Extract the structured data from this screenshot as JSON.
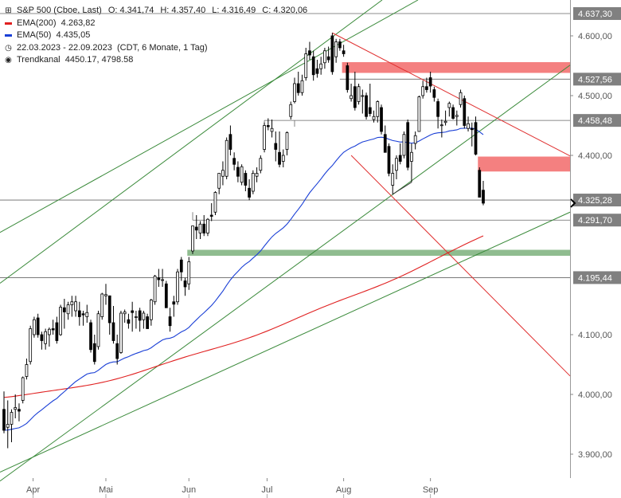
{
  "header": {
    "title": "S&P 500 (Cboe, Last)",
    "ohlc": [
      {
        "key": "O:",
        "value": "4.341,74"
      },
      {
        "key": "H:",
        "value": "4.357,40"
      },
      {
        "key": "L:",
        "value": "4.316,49"
      },
      {
        "key": "C:",
        "value": "4.320,06"
      }
    ],
    "ema200": {
      "label": "EMA(200)",
      "value": "4.263,82",
      "color": "#e02020"
    },
    "ema50": {
      "label": "EMA(50)",
      "value": "4.435,05",
      "color": "#1a3fd6"
    },
    "range": {
      "dates": "22.03.2023 - 22.09.2023",
      "note": "(CDT, 6 Monate, 1 Tag)"
    },
    "channel": {
      "label": "Trendkanal",
      "value": "4450.17, 4798.58"
    }
  },
  "chart_data": {
    "type": "candlestick",
    "ylim": [
      3860,
      4660
    ],
    "y_ticks": [
      {
        "value": 3900,
        "label": "3.900,00"
      },
      {
        "value": 4000,
        "label": "4.000,00"
      },
      {
        "value": 4100,
        "label": "4.100,00"
      },
      {
        "value": 4400,
        "label": "4.400,00"
      },
      {
        "value": 4500,
        "label": "4.500,00"
      },
      {
        "value": 4600,
        "label": "4.600,00"
      }
    ],
    "x_labels": [
      {
        "date": "2023-04-01",
        "label": "Apr"
      },
      {
        "date": "2023-05-01",
        "label": "Mai"
      },
      {
        "date": "2023-06-01",
        "label": "Jun"
      },
      {
        "date": "2023-07-01",
        "label": "Jul"
      },
      {
        "date": "2023-08-01",
        "label": "Aug"
      },
      {
        "date": "2023-09-01",
        "label": "Sep"
      }
    ],
    "price_levels": [
      {
        "value": 4637.3,
        "label": "4.637,30"
      },
      {
        "value": 4527.56,
        "label": "4.527,56"
      },
      {
        "value": 4458.48,
        "label": "4.458,48"
      },
      {
        "value": 4325.28,
        "label": "4.325,28"
      },
      {
        "value": 4291.7,
        "label": "4.291,70"
      },
      {
        "value": 4195.44,
        "label": "4.195,44"
      }
    ],
    "last_price_label": "4.325,28",
    "zones": [
      {
        "y_low": 4538,
        "y_high": 4556,
        "color": "#f48080"
      },
      {
        "y_low": 4373,
        "y_high": 4398,
        "color": "#f48080"
      },
      {
        "y_low": 4232,
        "y_high": 4242,
        "color": "#8fbc8f"
      }
    ],
    "ohlc": [
      {
        "date": "2023-03-22",
        "o": 3975,
        "h": 4005,
        "l": 3935,
        "c": 3940
      },
      {
        "date": "2023-03-23",
        "o": 3945,
        "h": 3990,
        "l": 3910,
        "c": 3950
      },
      {
        "date": "2023-03-24",
        "o": 3950,
        "h": 3975,
        "l": 3920,
        "c": 3970
      },
      {
        "date": "2023-03-27",
        "o": 3975,
        "h": 4000,
        "l": 3960,
        "c": 3978
      },
      {
        "date": "2023-03-28",
        "o": 3975,
        "h": 3985,
        "l": 3955,
        "c": 3972
      },
      {
        "date": "2023-03-29",
        "o": 3990,
        "h": 4030,
        "l": 3985,
        "c": 4028
      },
      {
        "date": "2023-03-30",
        "o": 4030,
        "h": 4060,
        "l": 4025,
        "c": 4050
      },
      {
        "date": "2023-03-31",
        "o": 4055,
        "h": 4115,
        "l": 4050,
        "c": 4110
      },
      {
        "date": "2023-04-03",
        "o": 4100,
        "h": 4130,
        "l": 4095,
        "c": 4125
      },
      {
        "date": "2023-04-04",
        "o": 4128,
        "h": 4135,
        "l": 4095,
        "c": 4100
      },
      {
        "date": "2023-04-05",
        "o": 4100,
        "h": 4105,
        "l": 4075,
        "c": 4090
      },
      {
        "date": "2023-04-06",
        "o": 4085,
        "h": 4110,
        "l": 4075,
        "c": 4105
      },
      {
        "date": "2023-04-10",
        "o": 4100,
        "h": 4112,
        "l": 4080,
        "c": 4109
      },
      {
        "date": "2023-04-11",
        "o": 4110,
        "h": 4125,
        "l": 4100,
        "c": 4108
      },
      {
        "date": "2023-04-12",
        "o": 4120,
        "h": 4130,
        "l": 4085,
        "c": 4090
      },
      {
        "date": "2023-04-13",
        "o": 4100,
        "h": 4150,
        "l": 4098,
        "c": 4146
      },
      {
        "date": "2023-04-14",
        "o": 4145,
        "h": 4160,
        "l": 4110,
        "c": 4138
      },
      {
        "date": "2023-04-17",
        "o": 4135,
        "h": 4155,
        "l": 4125,
        "c": 4150
      },
      {
        "date": "2023-04-18",
        "o": 4150,
        "h": 4165,
        "l": 4130,
        "c": 4155
      },
      {
        "date": "2023-04-19",
        "o": 4140,
        "h": 4165,
        "l": 4130,
        "c": 4155
      },
      {
        "date": "2023-04-20",
        "o": 4140,
        "h": 4155,
        "l": 4115,
        "c": 4130
      },
      {
        "date": "2023-04-21",
        "o": 4135,
        "h": 4140,
        "l": 4115,
        "c": 4133
      },
      {
        "date": "2023-04-24",
        "o": 4130,
        "h": 4150,
        "l": 4120,
        "c": 4137
      },
      {
        "date": "2023-04-25",
        "o": 4120,
        "h": 4125,
        "l": 4070,
        "c": 4075
      },
      {
        "date": "2023-04-26",
        "o": 4085,
        "h": 4100,
        "l": 4050,
        "c": 4055
      },
      {
        "date": "2023-04-27",
        "o": 4080,
        "h": 4140,
        "l": 4075,
        "c": 4135
      },
      {
        "date": "2023-04-28",
        "o": 4130,
        "h": 4170,
        "l": 4125,
        "c": 4168
      },
      {
        "date": "2023-05-01",
        "o": 4165,
        "h": 4185,
        "l": 4150,
        "c": 4167
      },
      {
        "date": "2023-05-02",
        "o": 4165,
        "h": 4165,
        "l": 4100,
        "c": 4120
      },
      {
        "date": "2023-05-03",
        "o": 4120,
        "h": 4148,
        "l": 4085,
        "c": 4090
      },
      {
        "date": "2023-05-04",
        "o": 4085,
        "h": 4100,
        "l": 4050,
        "c": 4060
      },
      {
        "date": "2023-05-05",
        "o": 4070,
        "h": 4140,
        "l": 4068,
        "c": 4136
      },
      {
        "date": "2023-05-08",
        "o": 4135,
        "h": 4142,
        "l": 4120,
        "c": 4138
      },
      {
        "date": "2023-05-09",
        "o": 4125,
        "h": 4135,
        "l": 4110,
        "c": 4119
      },
      {
        "date": "2023-05-10",
        "o": 4140,
        "h": 4155,
        "l": 4105,
        "c": 4137
      },
      {
        "date": "2023-05-11",
        "o": 4130,
        "h": 4140,
        "l": 4110,
        "c": 4130
      },
      {
        "date": "2023-05-12",
        "o": 4140,
        "h": 4145,
        "l": 4105,
        "c": 4124
      },
      {
        "date": "2023-05-15",
        "o": 4125,
        "h": 4140,
        "l": 4110,
        "c": 4136
      },
      {
        "date": "2023-05-16",
        "o": 4130,
        "h": 4135,
        "l": 4110,
        "c": 4110
      },
      {
        "date": "2023-05-17",
        "o": 4125,
        "h": 4160,
        "l": 4115,
        "c": 4158
      },
      {
        "date": "2023-05-18",
        "o": 4155,
        "h": 4200,
        "l": 4150,
        "c": 4198
      },
      {
        "date": "2023-05-19",
        "o": 4195,
        "h": 4210,
        "l": 4180,
        "c": 4192
      },
      {
        "date": "2023-05-22",
        "o": 4192,
        "h": 4210,
        "l": 4180,
        "c": 4192
      },
      {
        "date": "2023-05-23",
        "o": 4185,
        "h": 4190,
        "l": 4145,
        "c": 4145
      },
      {
        "date": "2023-05-24",
        "o": 4130,
        "h": 4145,
        "l": 4105,
        "c": 4115
      },
      {
        "date": "2023-05-25",
        "o": 4155,
        "h": 4165,
        "l": 4130,
        "c": 4151
      },
      {
        "date": "2023-05-26",
        "o": 4155,
        "h": 4210,
        "l": 4150,
        "c": 4205
      },
      {
        "date": "2023-05-30",
        "o": 4225,
        "h": 4230,
        "l": 4190,
        "c": 4205
      },
      {
        "date": "2023-05-31",
        "o": 4190,
        "h": 4195,
        "l": 4165,
        "c": 4180
      },
      {
        "date": "2023-06-01",
        "o": 4185,
        "h": 4230,
        "l": 4175,
        "c": 4222
      },
      {
        "date": "2023-06-02",
        "o": 4240,
        "h": 4275,
        "l": 4235,
        "c": 4282
      },
      {
        "date": "2023-06-05",
        "o": 4280,
        "h": 4300,
        "l": 4260,
        "c": 4275
      },
      {
        "date": "2023-06-06",
        "o": 4270,
        "h": 4290,
        "l": 4260,
        "c": 4285
      },
      {
        "date": "2023-06-07",
        "o": 4285,
        "h": 4300,
        "l": 4265,
        "c": 4270
      },
      {
        "date": "2023-06-08",
        "o": 4270,
        "h": 4295,
        "l": 4265,
        "c": 4293
      },
      {
        "date": "2023-06-09",
        "o": 4300,
        "h": 4320,
        "l": 4290,
        "c": 4298
      },
      {
        "date": "2023-06-12",
        "o": 4305,
        "h": 4340,
        "l": 4300,
        "c": 4338
      },
      {
        "date": "2023-06-13",
        "o": 4345,
        "h": 4365,
        "l": 4335,
        "c": 4370
      },
      {
        "date": "2023-06-14",
        "o": 4365,
        "h": 4390,
        "l": 4350,
        "c": 4375
      },
      {
        "date": "2023-06-15",
        "o": 4365,
        "h": 4430,
        "l": 4360,
        "c": 4425
      },
      {
        "date": "2023-06-16",
        "o": 4435,
        "h": 4450,
        "l": 4400,
        "c": 4410
      },
      {
        "date": "2023-06-20",
        "o": 4395,
        "h": 4405,
        "l": 4375,
        "c": 4385
      },
      {
        "date": "2023-06-21",
        "o": 4380,
        "h": 4390,
        "l": 4355,
        "c": 4365
      },
      {
        "date": "2023-06-22",
        "o": 4355,
        "h": 4385,
        "l": 4350,
        "c": 4381
      },
      {
        "date": "2023-06-23",
        "o": 4370,
        "h": 4375,
        "l": 4340,
        "c": 4350
      },
      {
        "date": "2023-06-26",
        "o": 4345,
        "h": 4360,
        "l": 4325,
        "c": 4330
      },
      {
        "date": "2023-06-27",
        "o": 4340,
        "h": 4375,
        "l": 4335,
        "c": 4370
      },
      {
        "date": "2023-06-28",
        "o": 4365,
        "h": 4380,
        "l": 4355,
        "c": 4370
      },
      {
        "date": "2023-06-29",
        "o": 4375,
        "h": 4400,
        "l": 4370,
        "c": 4395
      },
      {
        "date": "2023-06-30",
        "o": 4410,
        "h": 4455,
        "l": 4405,
        "c": 4450
      },
      {
        "date": "2023-07-03",
        "o": 4450,
        "h": 4462,
        "l": 4442,
        "c": 4448
      },
      {
        "date": "2023-07-05",
        "o": 4440,
        "h": 4460,
        "l": 4430,
        "c": 4445
      },
      {
        "date": "2023-07-06",
        "o": 4420,
        "h": 4440,
        "l": 4390,
        "c": 4410
      },
      {
        "date": "2023-07-07",
        "o": 4405,
        "h": 4440,
        "l": 4380,
        "c": 4385
      },
      {
        "date": "2023-07-10",
        "o": 4390,
        "h": 4410,
        "l": 4380,
        "c": 4400
      },
      {
        "date": "2023-07-11",
        "o": 4410,
        "h": 4440,
        "l": 4400,
        "c": 4438
      },
      {
        "date": "2023-07-12",
        "o": 4465,
        "h": 4490,
        "l": 4460,
        "c": 4485
      },
      {
        "date": "2023-07-13",
        "o": 4490,
        "h": 4530,
        "l": 4487,
        "c": 4520
      },
      {
        "date": "2023-07-14",
        "o": 4520,
        "h": 4540,
        "l": 4500,
        "c": 4505
      },
      {
        "date": "2023-07-17",
        "o": 4505,
        "h": 4535,
        "l": 4500,
        "c": 4525
      },
      {
        "date": "2023-07-18",
        "o": 4530,
        "h": 4580,
        "l": 4525,
        "c": 4570
      },
      {
        "date": "2023-07-19",
        "o": 4575,
        "h": 4590,
        "l": 4560,
        "c": 4568
      },
      {
        "date": "2023-07-20",
        "o": 4565,
        "h": 4575,
        "l": 4525,
        "c": 4535
      },
      {
        "date": "2023-07-21",
        "o": 4545,
        "h": 4560,
        "l": 4530,
        "c": 4537
      },
      {
        "date": "2023-07-24",
        "o": 4545,
        "h": 4565,
        "l": 4535,
        "c": 4553
      },
      {
        "date": "2023-07-25",
        "o": 4555,
        "h": 4580,
        "l": 4545,
        "c": 4575
      },
      {
        "date": "2023-07-26",
        "o": 4565,
        "h": 4582,
        "l": 4555,
        "c": 4560
      },
      {
        "date": "2023-07-27",
        "o": 4600,
        "h": 4605,
        "l": 4535,
        "c": 4540
      },
      {
        "date": "2023-07-28",
        "o": 4565,
        "h": 4595,
        "l": 4555,
        "c": 4590
      },
      {
        "date": "2023-07-31",
        "o": 4590,
        "h": 4595,
        "l": 4575,
        "c": 4580
      },
      {
        "date": "2023-08-01",
        "o": 4575,
        "h": 4585,
        "l": 4565,
        "c": 4570
      },
      {
        "date": "2023-08-02",
        "o": 4550,
        "h": 4555,
        "l": 4505,
        "c": 4510
      },
      {
        "date": "2023-08-03",
        "o": 4495,
        "h": 4520,
        "l": 4490,
        "c": 4500
      },
      {
        "date": "2023-08-04",
        "o": 4515,
        "h": 4540,
        "l": 4475,
        "c": 4480
      },
      {
        "date": "2023-08-07",
        "o": 4490,
        "h": 4520,
        "l": 4485,
        "c": 4515
      },
      {
        "date": "2023-08-08",
        "o": 4500,
        "h": 4510,
        "l": 4470,
        "c": 4500
      },
      {
        "date": "2023-08-09",
        "o": 4500,
        "h": 4505,
        "l": 4460,
        "c": 4465
      },
      {
        "date": "2023-08-10",
        "o": 4480,
        "h": 4520,
        "l": 4465,
        "c": 4470
      },
      {
        "date": "2023-08-11",
        "o": 4460,
        "h": 4475,
        "l": 4455,
        "c": 4465
      },
      {
        "date": "2023-08-14",
        "o": 4465,
        "h": 4492,
        "l": 4455,
        "c": 4490
      },
      {
        "date": "2023-08-15",
        "o": 4480,
        "h": 4485,
        "l": 4435,
        "c": 4440
      },
      {
        "date": "2023-08-16",
        "o": 4435,
        "h": 4450,
        "l": 4405,
        "c": 4405
      },
      {
        "date": "2023-08-17",
        "o": 4415,
        "h": 4420,
        "l": 4365,
        "c": 4370
      },
      {
        "date": "2023-08-18",
        "o": 4350,
        "h": 4385,
        "l": 4335,
        "c": 4370
      },
      {
        "date": "2023-08-21",
        "o": 4375,
        "h": 4400,
        "l": 4360,
        "c": 4395
      },
      {
        "date": "2023-08-22",
        "o": 4400,
        "h": 4420,
        "l": 4385,
        "c": 4390
      },
      {
        "date": "2023-08-23",
        "o": 4400,
        "h": 4440,
        "l": 4395,
        "c": 4435
      },
      {
        "date": "2023-08-24",
        "o": 4455,
        "h": 4460,
        "l": 4375,
        "c": 4380
      },
      {
        "date": "2023-08-25",
        "o": 4390,
        "h": 4420,
        "l": 4355,
        "c": 4405
      },
      {
        "date": "2023-08-28",
        "o": 4420,
        "h": 4440,
        "l": 4410,
        "c": 4433
      },
      {
        "date": "2023-08-29",
        "o": 4440,
        "h": 4500,
        "l": 4440,
        "c": 4498
      },
      {
        "date": "2023-08-30",
        "o": 4500,
        "h": 4525,
        "l": 4495,
        "c": 4515
      },
      {
        "date": "2023-08-31",
        "o": 4515,
        "h": 4530,
        "l": 4505,
        "c": 4510
      },
      {
        "date": "2023-09-01",
        "o": 4530,
        "h": 4540,
        "l": 4505,
        "c": 4516
      },
      {
        "date": "2023-09-05",
        "o": 4510,
        "h": 4515,
        "l": 4490,
        "c": 4497
      },
      {
        "date": "2023-09-06",
        "o": 4490,
        "h": 4495,
        "l": 4445,
        "c": 4465
      },
      {
        "date": "2023-09-07",
        "o": 4450,
        "h": 4460,
        "l": 4430,
        "c": 4451
      },
      {
        "date": "2023-09-08",
        "o": 4455,
        "h": 4475,
        "l": 4450,
        "c": 4457
      },
      {
        "date": "2023-09-11",
        "o": 4480,
        "h": 4490,
        "l": 4465,
        "c": 4487
      },
      {
        "date": "2023-09-12",
        "o": 4480,
        "h": 4485,
        "l": 4460,
        "c": 4462
      },
      {
        "date": "2023-09-13",
        "o": 4465,
        "h": 4475,
        "l": 4450,
        "c": 4467
      },
      {
        "date": "2023-09-14",
        "o": 4485,
        "h": 4510,
        "l": 4480,
        "c": 4505
      },
      {
        "date": "2023-09-15",
        "o": 4495,
        "h": 4500,
        "l": 4445,
        "c": 4450
      },
      {
        "date": "2023-09-18",
        "o": 4445,
        "h": 4465,
        "l": 4440,
        "c": 4453
      },
      {
        "date": "2023-09-19",
        "o": 4445,
        "h": 4455,
        "l": 4415,
        "c": 4443
      },
      {
        "date": "2023-09-20",
        "o": 4455,
        "h": 4465,
        "l": 4400,
        "c": 4402
      },
      {
        "date": "2023-09-21",
        "o": 4375,
        "h": 4380,
        "l": 4330,
        "c": 4330
      },
      {
        "date": "2023-09-22",
        "o": 4341.74,
        "h": 4357.4,
        "l": 4316.49,
        "c": 4320.06
      }
    ]
  }
}
